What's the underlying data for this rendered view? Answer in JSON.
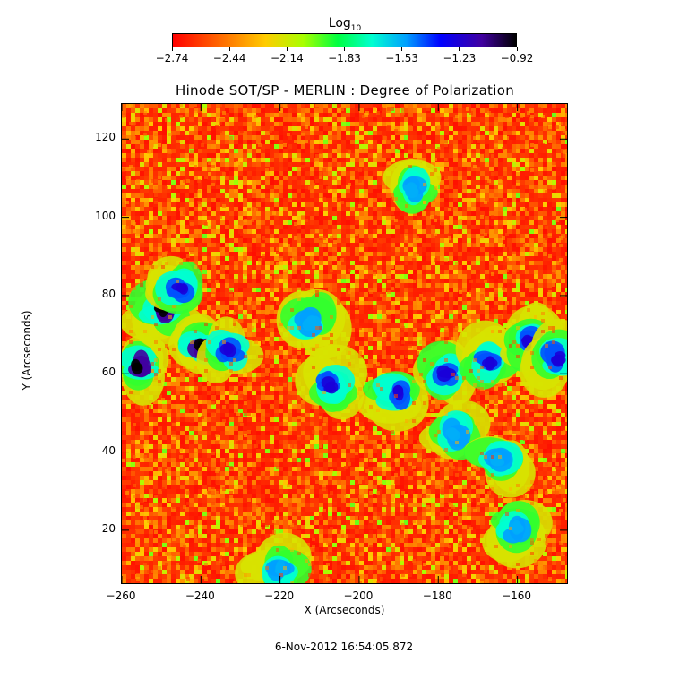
{
  "chart_data": {
    "type": "heatmap",
    "title": "Hinode SOT/SP - MERLIN : Degree of Polarization",
    "xlabel": "X (Arcseconds)",
    "ylabel": "Y (Arcseconds)",
    "xlim": [
      -260,
      -147
    ],
    "ylim": [
      6,
      129
    ],
    "xticks": [
      -260,
      -240,
      -220,
      -200,
      -180,
      -160
    ],
    "yticks": [
      20,
      40,
      60,
      80,
      100,
      120
    ],
    "colorbar": {
      "title": "Log",
      "title_subscript": "10",
      "ticks": [
        -2.74,
        -2.44,
        -2.14,
        -1.83,
        -1.53,
        -1.23,
        -0.92
      ],
      "colormap": "rainbow-red-to-black"
    },
    "high_polarization_network": [
      {
        "x": -256,
        "y": 62,
        "level": -0.92
      },
      {
        "x": -250,
        "y": 76,
        "level": -0.92
      },
      {
        "x": -240,
        "y": 67,
        "level": -0.92
      },
      {
        "x": -245,
        "y": 82,
        "level": -1.23
      },
      {
        "x": -233,
        "y": 66,
        "level": -1.23
      },
      {
        "x": -207,
        "y": 57,
        "level": -1.23
      },
      {
        "x": -190,
        "y": 55,
        "level": -1.23
      },
      {
        "x": -178,
        "y": 60,
        "level": -1.23
      },
      {
        "x": -167,
        "y": 63,
        "level": -1.23
      },
      {
        "x": -157,
        "y": 68,
        "level": -1.23
      },
      {
        "x": -150,
        "y": 64,
        "level": -1.23
      },
      {
        "x": -212,
        "y": 73,
        "level": -1.53
      },
      {
        "x": -187,
        "y": 107,
        "level": -1.53
      },
      {
        "x": -176,
        "y": 45,
        "level": -1.53
      },
      {
        "x": -165,
        "y": 38,
        "level": -1.53
      },
      {
        "x": -160,
        "y": 20,
        "level": -1.53
      },
      {
        "x": -220,
        "y": 10,
        "level": -1.53
      }
    ]
  },
  "footer": {
    "timestamp": "6-Nov-2012 16:54:05.872"
  }
}
